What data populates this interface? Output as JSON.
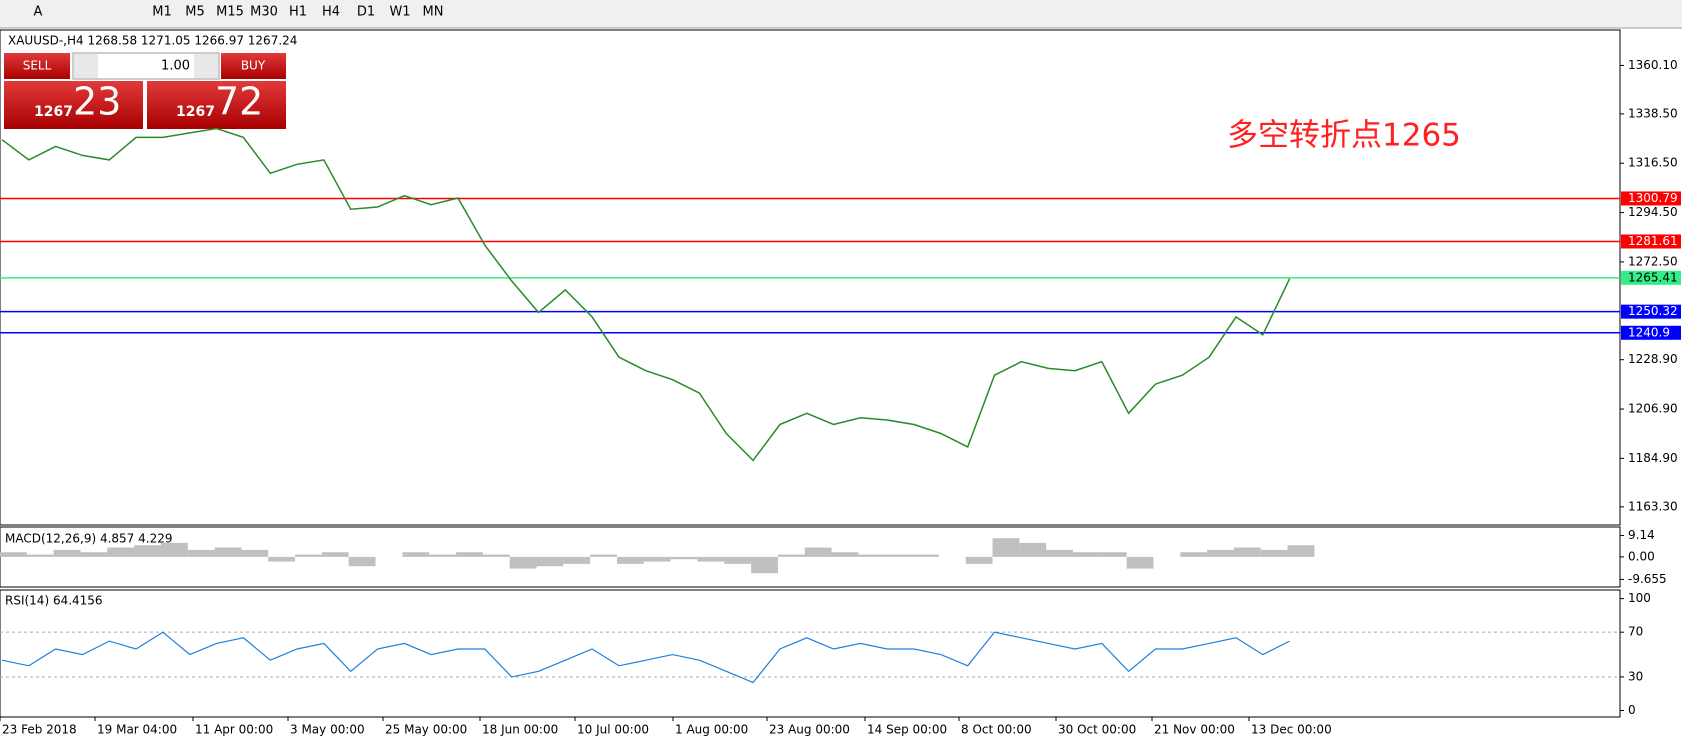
{
  "toolbar": {
    "tools": [
      "A"
    ],
    "timeframes": [
      "M1",
      "M5",
      "M15",
      "M30",
      "H1",
      "H4",
      "D1",
      "W1",
      "MN"
    ]
  },
  "chart": {
    "symbol_info": "XAUUSD-,H4  1268.58 1271.05 1266.97 1267.24",
    "annotation": "多空转折点1265",
    "ylim": [
      1155.2,
      1375.9
    ],
    "yticks": [
      {
        "value": 1360.1,
        "label": "1360.10"
      },
      {
        "value": 1338.5,
        "label": "1338.50"
      },
      {
        "value": 1316.5,
        "label": "1316.50"
      },
      {
        "value": 1294.5,
        "label": "1294.50"
      },
      {
        "value": 1272.5,
        "label": "1272.50"
      },
      {
        "value": 1228.9,
        "label": "1228.90"
      },
      {
        "value": 1206.9,
        "label": "1206.90"
      },
      {
        "value": 1184.9,
        "label": "1184.90"
      },
      {
        "value": 1163.3,
        "label": "1163.30"
      }
    ],
    "levels": [
      {
        "value": 1300.79,
        "color": "#ff0000"
      },
      {
        "value": 1281.61,
        "color": "#ff0000"
      },
      {
        "value": 1265.41,
        "color": "#33ee88"
      },
      {
        "value": 1250.32,
        "color": "#0000ff"
      },
      {
        "value": 1240.9,
        "color": "#0000ff"
      }
    ],
    "price": {
      "color": "#2a8a2a",
      "values": [
        1327,
        1318,
        1324,
        1320,
        1318,
        1328,
        1328,
        1330,
        1332,
        1328,
        1312,
        1316,
        1318,
        1296,
        1297,
        1302,
        1298,
        1301,
        1280,
        1264,
        1250,
        1260,
        1248,
        1230,
        1224,
        1220,
        1214,
        1196,
        1184,
        1200,
        1205,
        1200,
        1203,
        1202,
        1200,
        1196,
        1190,
        1222,
        1228,
        1225,
        1224,
        1228,
        1205,
        1218,
        1222,
        1230,
        1248,
        1240,
        1265
      ]
    }
  },
  "trade_panel": {
    "sell": "SELL",
    "buy": "BUY",
    "lot": "1.00",
    "sell_price": {
      "big": "1267",
      "pips": "23"
    },
    "buy_price": {
      "big": "1267",
      "pips": "72"
    }
  },
  "macd": {
    "label": "MACD(12,26,9) 4.857 4.229",
    "ylim": [
      -12.9,
      12.8
    ],
    "yticks": [
      9.14,
      {
        "value": 0,
        "label": "0.00"
      },
      -9.655
    ],
    "values": [
      2,
      1,
      3,
      2,
      4,
      5,
      6,
      3,
      4,
      3,
      -2,
      1,
      2,
      -4,
      0,
      2,
      1,
      2,
      1,
      -5,
      -4,
      -3,
      1,
      -3,
      -2,
      -1,
      -2,
      -3,
      -7,
      1,
      4,
      2,
      1,
      1,
      1,
      0,
      -3,
      8,
      6,
      3,
      2,
      2,
      -5,
      0,
      2,
      3,
      4,
      3,
      5
    ]
  },
  "rsi": {
    "label": "RSI(14) 64.4156",
    "ylim": [
      -5.8,
      107.7
    ],
    "yticks": [
      100,
      70,
      30,
      0
    ],
    "levels": [
      70,
      30
    ],
    "color": "#1e7fe0",
    "values": [
      45,
      40,
      55,
      50,
      62,
      55,
      70,
      50,
      60,
      65,
      45,
      55,
      60,
      35,
      55,
      60,
      50,
      55,
      55,
      30,
      35,
      45,
      55,
      40,
      45,
      50,
      45,
      35,
      25,
      55,
      65,
      55,
      60,
      55,
      55,
      50,
      40,
      70,
      65,
      60,
      55,
      60,
      35,
      55,
      55,
      60,
      65,
      50,
      62
    ]
  },
  "dates": [
    "23 Feb 2018",
    "19 Mar 04:00",
    "11 Apr 00:00",
    "3 May 00:00",
    "25 May 00:00",
    "18 Jun 00:00",
    "10 Jul 00:00",
    "1 Aug 00:00",
    "23 Aug 00:00",
    "14 Sep 00:00",
    "8 Oct 00:00",
    "30 Oct 00:00",
    "21 Nov 00:00",
    "13 Dec 00:00"
  ]
}
